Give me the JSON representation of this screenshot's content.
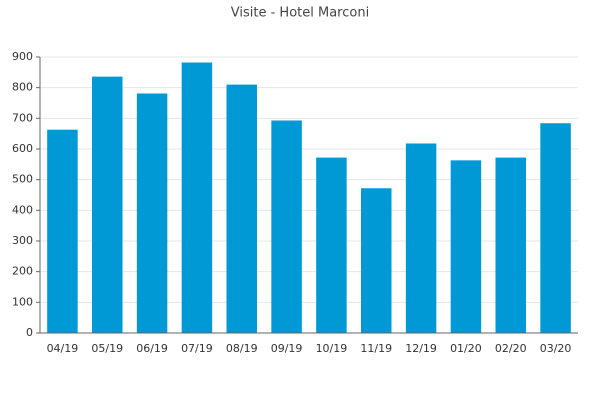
{
  "chart_data": {
    "type": "bar",
    "title": "Visite - Hotel Marconi",
    "categories": [
      "04/19",
      "05/19",
      "06/19",
      "07/19",
      "08/19",
      "09/19",
      "10/19",
      "11/19",
      "12/19",
      "01/20",
      "02/20",
      "03/20"
    ],
    "values": [
      663,
      836,
      781,
      882,
      810,
      693,
      572,
      472,
      618,
      563,
      572,
      684
    ],
    "color": "#0099d6",
    "ylim": [
      0,
      900
    ],
    "yticks": [
      0,
      100,
      200,
      300,
      400,
      500,
      600,
      700,
      800,
      900
    ],
    "grid": true
  }
}
